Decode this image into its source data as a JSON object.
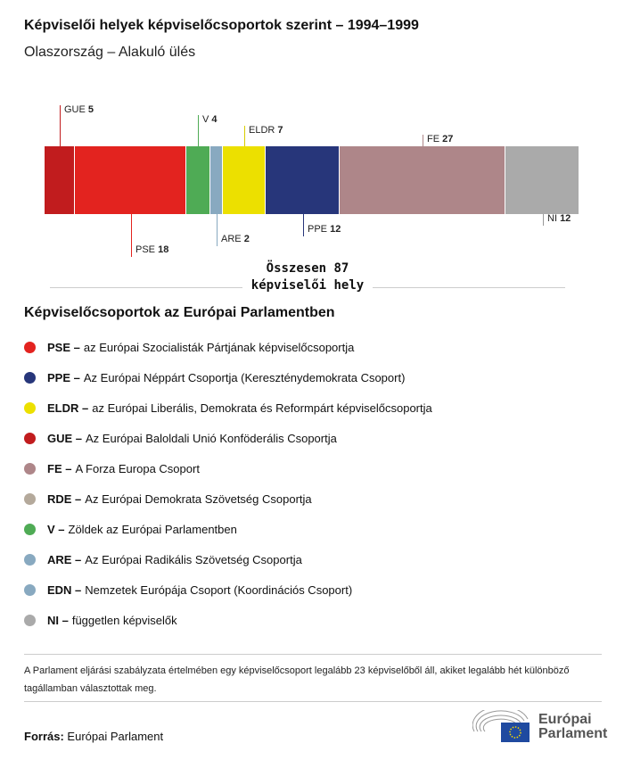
{
  "title": "Képviselői helyek képviselőcsoportok szerint – 1994–1999",
  "subtitle": "Olaszország – Alakuló ülés",
  "chart_data": {
    "type": "bar",
    "orientation": "horizontal-stacked",
    "categories": [
      "GUE",
      "PSE",
      "V",
      "ARE",
      "ELDR",
      "PPE",
      "FE",
      "NI"
    ],
    "values": [
      5,
      18,
      4,
      2,
      7,
      12,
      27,
      12
    ],
    "colors": [
      "#c11c1e",
      "#e3231f",
      "#4fab55",
      "#88a9c0",
      "#ece000",
      "#27367a",
      "#ae8689",
      "#aaaaaa"
    ],
    "total_label": "Összesen 87 képviselői hely",
    "total": 87
  },
  "legend_title": "Képviselőcsoportok az Európai Parlamentben",
  "legend": [
    {
      "abbr": "PSE –",
      "text": "az Európai Szocialisták Pártjának képviselőcsoportja",
      "color": "#e3231f"
    },
    {
      "abbr": "PPE –",
      "text": "Az Európai Néppárt Csoportja (Kereszténydemokrata Csoport)",
      "color": "#27367a"
    },
    {
      "abbr": "ELDR –",
      "text": "az Európai Liberális, Demokrata és Reformpárt képviselőcsoportja",
      "color": "#ece000"
    },
    {
      "abbr": "GUE –",
      "text": "Az Európai Baloldali Unió Konföderális Csoportja",
      "color": "#c11c1e"
    },
    {
      "abbr": "FE –",
      "text": "A Forza Europa Csoport",
      "color": "#ae8689"
    },
    {
      "abbr": "RDE –",
      "text": "Az Európai Demokrata Szövetség Csoportja",
      "color": "#b4a99b"
    },
    {
      "abbr": "V –",
      "text": "Zöldek az Európai Parlamentben",
      "color": "#4fab55"
    },
    {
      "abbr": "ARE –",
      "text": "Az Európai Radikális Szövetség Csoportja",
      "color": "#88a9c0"
    },
    {
      "abbr": "EDN –",
      "text": "Nemzetek Európája Csoport (Koordinációs Csoport)",
      "color": "#88a9c0"
    },
    {
      "abbr": "NI –",
      "text": "független képviselők",
      "color": "#aaaaaa"
    }
  ],
  "note": "A Parlament eljárási szabályzata értelmében egy képviselőcsoport legalább 23 képviselőből áll, akiket legalább hét különböző tagállamban választottak meg.",
  "source_label": "Forrás:",
  "source": "Európai Parlament",
  "logo_text": "Európai Parlament"
}
